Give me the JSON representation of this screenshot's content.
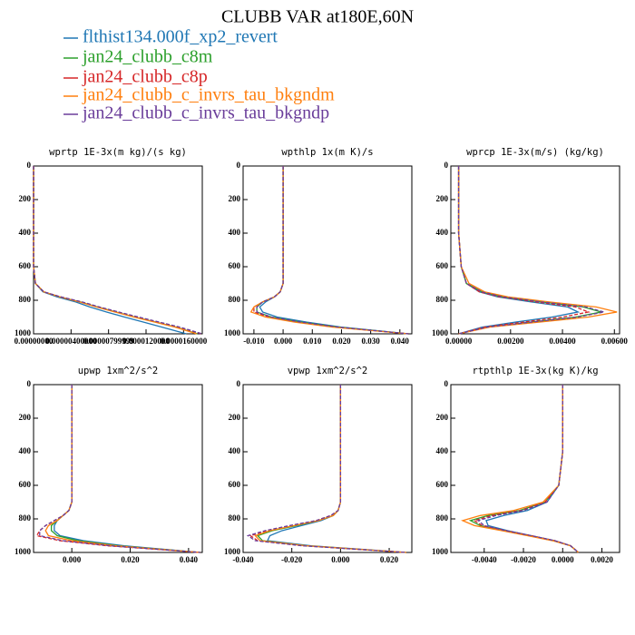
{
  "title": "CLUBB VAR at180E,60N",
  "legend": [
    {
      "name": "flthist134.000f_xp2_revert",
      "color": "#1f77b4",
      "dashed": false
    },
    {
      "name": "jan24_clubb_c8m",
      "color": "#2ca02c",
      "dashed": false
    },
    {
      "name": "jan24_clubb_c8p",
      "color": "#d62728",
      "dashed": true
    },
    {
      "name": "jan24_clubb_c_invrs_tau_bkgndm",
      "color": "#ff7f0e",
      "dashed": false
    },
    {
      "name": "jan24_clubb_c_invrs_tau_bkgndp",
      "color": "#6a3d9a",
      "dashed": true
    }
  ],
  "chart_data": [
    {
      "type": "profile",
      "title": "wprtp  1E-3x(m kg)/(s kg)",
      "y": [
        0,
        200,
        400,
        600,
        700,
        750,
        780,
        810,
        840,
        870,
        900,
        930,
        960,
        1000
      ],
      "ylim": [
        1000,
        0
      ],
      "yticks": [
        0,
        200,
        400,
        600,
        800,
        1000
      ],
      "xlim": [
        0,
        1.8e-05
      ],
      "xticks": [
        {
          "value": 0,
          "label": "0.00000000"
        },
        {
          "value": 4e-06,
          "label": "0.00000400000"
        },
        {
          "value": 8e-06,
          "label": "0.00000799999"
        },
        {
          "value": 1.2e-05,
          "label": "0.0000120000"
        },
        {
          "value": 1.6e-05,
          "label": "0.0000160000"
        }
      ],
      "series": [
        {
          "values": [
            0,
            0,
            0,
            0,
            2e-07,
            1e-06,
            2.5e-06,
            4.5e-06,
            6e-06,
            7.8e-06,
            9.7e-06,
            1.17e-05,
            1.37e-05,
            1.63e-05
          ]
        },
        {
          "values": [
            0,
            0,
            0,
            0,
            2e-07,
            1.1e-06,
            2.8e-06,
            5e-06,
            6.8e-06,
            8.8e-06,
            1.08e-05,
            1.3e-05,
            1.52e-05,
            1.75e-05
          ]
        },
        {
          "values": [
            0,
            0,
            0,
            0,
            2e-07,
            1.1e-06,
            2.9e-06,
            5.1e-06,
            7e-06,
            9e-06,
            1.11e-05,
            1.33e-05,
            1.55e-05,
            1.79e-05
          ]
        },
        {
          "values": [
            0,
            0,
            0,
            0,
            2e-07,
            1.1e-06,
            2.8e-06,
            4.9e-06,
            6.7e-06,
            8.7e-06,
            1.07e-05,
            1.29e-05,
            1.51e-05,
            1.74e-05
          ]
        },
        {
          "values": [
            0,
            0,
            0,
            0,
            2e-07,
            1.1e-06,
            2.9e-06,
            5.2e-06,
            7e-06,
            9.1e-06,
            1.12e-05,
            1.34e-05,
            1.56e-05,
            1.8e-05
          ]
        }
      ]
    },
    {
      "type": "profile",
      "title": "wpthlp  1x(m K)/s",
      "y": [
        0,
        200,
        400,
        600,
        700,
        750,
        780,
        810,
        840,
        870,
        900,
        930,
        960,
        1000
      ],
      "ylim": [
        1000,
        0
      ],
      "yticks": [
        0,
        200,
        400,
        600,
        800,
        1000
      ],
      "xlim": [
        -0.0137,
        0.0441
      ],
      "xticks": [
        {
          "value": -0.01,
          "label": "-0.010"
        },
        {
          "value": 0,
          "label": "0.000"
        },
        {
          "value": 0.01,
          "label": "0.010"
        },
        {
          "value": 0.02,
          "label": "0.020"
        },
        {
          "value": 0.03,
          "label": "0.030"
        },
        {
          "value": 0.04,
          "label": "0.040"
        }
      ],
      "series": [
        {
          "values": [
            0,
            0,
            0,
            0,
            0,
            -0.001,
            -0.003,
            -0.006,
            -0.008,
            -0.007,
            -0.002,
            0.008,
            0.02,
            0.043
          ]
        },
        {
          "values": [
            0,
            0,
            0,
            0,
            0,
            -0.001,
            -0.003,
            -0.007,
            -0.009,
            -0.009,
            -0.004,
            0.006,
            0.019,
            0.043
          ]
        },
        {
          "values": [
            0,
            0,
            0,
            0,
            0,
            -0.001,
            -0.003,
            -0.007,
            -0.01,
            -0.01,
            -0.005,
            0.005,
            0.018,
            0.043
          ]
        },
        {
          "values": [
            0,
            0,
            0,
            0,
            0,
            -0.001,
            -0.003,
            -0.007,
            -0.01,
            -0.011,
            -0.006,
            0.004,
            0.017,
            0.043
          ]
        },
        {
          "values": [
            0,
            0,
            0,
            0,
            0,
            -0.001,
            -0.003,
            -0.007,
            -0.009,
            -0.009,
            -0.004,
            0.006,
            0.019,
            0.043
          ]
        }
      ]
    },
    {
      "type": "profile",
      "title": "wprcp  1E-3x(m/s) (kg/kg)",
      "y": [
        0,
        200,
        400,
        600,
        700,
        750,
        780,
        810,
        840,
        870,
        900,
        930,
        960,
        1000
      ],
      "ylim": [
        1000,
        0
      ],
      "yticks": [
        0,
        200,
        400,
        600,
        800,
        1000
      ],
      "xlim": [
        -0.0003,
        0.0062
      ],
      "xticks": [
        {
          "value": 0,
          "label": "0.00000"
        },
        {
          "value": 0.002,
          "label": "0.00200"
        },
        {
          "value": 0.004,
          "label": "0.00400"
        },
        {
          "value": 0.006,
          "label": "0.00600"
        }
      ],
      "series": [
        {
          "values": [
            0,
            0,
            0,
            0.0001,
            0.0003,
            0.0008,
            0.0015,
            0.0028,
            0.0042,
            0.0046,
            0.0036,
            0.0022,
            0.0009,
            0
          ]
        },
        {
          "values": [
            0,
            0,
            0,
            0.0001,
            0.0003,
            0.0009,
            0.0017,
            0.0032,
            0.0048,
            0.0055,
            0.0045,
            0.0028,
            0.0011,
            0
          ]
        },
        {
          "values": [
            0,
            0,
            0,
            0.0001,
            0.0003,
            0.0008,
            0.0016,
            0.003,
            0.0045,
            0.005,
            0.004,
            0.0025,
            0.001,
            0
          ]
        },
        {
          "values": [
            0,
            0,
            0,
            0.0001,
            0.0004,
            0.001,
            0.0019,
            0.0035,
            0.0053,
            0.0061,
            0.005,
            0.0031,
            0.0012,
            0
          ]
        },
        {
          "values": [
            0,
            0,
            0,
            0.0001,
            0.0003,
            0.0009,
            0.0017,
            0.0032,
            0.0049,
            0.0056,
            0.0046,
            0.0028,
            0.0011,
            0
          ]
        }
      ]
    },
    {
      "type": "profile",
      "title": "upwp  1xm^2/s^2",
      "y": [
        0,
        200,
        400,
        600,
        700,
        750,
        780,
        810,
        840,
        870,
        900,
        930,
        960,
        1000
      ],
      "ylim": [
        1000,
        0
      ],
      "yticks": [
        0,
        200,
        400,
        600,
        800,
        1000
      ],
      "xlim": [
        -0.0131,
        0.0447
      ],
      "xticks": [
        {
          "value": 0,
          "label": "0.000"
        },
        {
          "value": 0.02,
          "label": "0.020"
        },
        {
          "value": 0.04,
          "label": "0.040"
        }
      ],
      "series": [
        {
          "values": [
            0,
            0,
            0,
            0,
            0,
            -0.001,
            -0.003,
            -0.005,
            -0.006,
            -0.006,
            -0.004,
            0.004,
            0.018,
            0.044
          ]
        },
        {
          "values": [
            0,
            0,
            0,
            0,
            0,
            -0.001,
            -0.003,
            -0.005,
            -0.007,
            -0.007,
            -0.005,
            0.002,
            0.016,
            0.044
          ]
        },
        {
          "values": [
            0,
            0,
            0,
            0,
            0,
            -0.001,
            -0.003,
            -0.006,
            -0.009,
            -0.011,
            -0.012,
            -0.004,
            0.012,
            0.044
          ]
        },
        {
          "values": [
            0,
            0,
            0,
            0,
            0,
            -0.001,
            -0.003,
            -0.005,
            -0.008,
            -0.009,
            -0.008,
            0,
            0.015,
            0.044
          ]
        },
        {
          "values": [
            0,
            0,
            0,
            0,
            0,
            -0.001,
            -0.003,
            -0.006,
            -0.009,
            -0.011,
            -0.011,
            -0.003,
            0.013,
            0.044
          ]
        }
      ]
    },
    {
      "type": "profile",
      "title": "vpwp  1xm^2/s^2",
      "y": [
        0,
        200,
        400,
        600,
        700,
        750,
        780,
        810,
        840,
        870,
        900,
        930,
        960,
        1000
      ],
      "ylim": [
        1000,
        0
      ],
      "yticks": [
        0,
        200,
        400,
        600,
        800,
        1000
      ],
      "xlim": [
        -0.04,
        0.0293
      ],
      "xticks": [
        {
          "value": -0.04,
          "label": "-0.040"
        },
        {
          "value": -0.02,
          "label": "-0.020"
        },
        {
          "value": 0,
          "label": "0.000"
        },
        {
          "value": 0.02,
          "label": "0.020"
        }
      ],
      "series": [
        {
          "values": [
            0,
            0,
            0,
            0,
            0,
            -0.001,
            -0.003,
            -0.008,
            -0.016,
            -0.024,
            -0.029,
            -0.03,
            -0.012,
            0.027
          ]
        },
        {
          "values": [
            0,
            0,
            0,
            0,
            0,
            -0.001,
            -0.003,
            -0.009,
            -0.018,
            -0.028,
            -0.034,
            -0.032,
            -0.014,
            0.027
          ]
        },
        {
          "values": [
            0,
            0,
            0,
            0,
            0,
            -0.001,
            -0.004,
            -0.01,
            -0.02,
            -0.03,
            -0.037,
            -0.034,
            -0.015,
            0.027
          ]
        },
        {
          "values": [
            0,
            0,
            0,
            0,
            0,
            -0.001,
            -0.003,
            -0.009,
            -0.019,
            -0.029,
            -0.035,
            -0.033,
            -0.014,
            0.027
          ]
        },
        {
          "values": [
            0,
            0,
            0,
            0,
            0,
            -0.001,
            -0.004,
            -0.01,
            -0.021,
            -0.031,
            -0.038,
            -0.035,
            -0.016,
            0.027
          ]
        }
      ]
    },
    {
      "type": "profile",
      "title": "rtpthlp  1E-3x(kg K)/kg",
      "y": [
        0,
        200,
        400,
        600,
        700,
        750,
        780,
        810,
        840,
        870,
        900,
        930,
        960,
        1000
      ],
      "ylim": [
        1000,
        0
      ],
      "yticks": [
        0,
        200,
        400,
        600,
        800,
        1000
      ],
      "xlim": [
        -0.0057,
        0.0029
      ],
      "xticks": [
        {
          "value": -0.004,
          "label": "-0.0040"
        },
        {
          "value": -0.002,
          "label": "-0.0020"
        },
        {
          "value": 0,
          "label": "0.0000"
        },
        {
          "value": 0.002,
          "label": "0.0020"
        }
      ],
      "series": [
        {
          "values": [
            0,
            0,
            0,
            -0.0002,
            -0.0008,
            -0.0018,
            -0.003,
            -0.0039,
            -0.0038,
            -0.0028,
            -0.0016,
            -0.0004,
            0.0004,
            0.0008
          ]
        },
        {
          "values": [
            0,
            0,
            0,
            -0.0002,
            -0.0009,
            -0.0022,
            -0.0038,
            -0.0047,
            -0.0042,
            -0.003,
            -0.0017,
            -0.0005,
            0.0004,
            0.0008
          ]
        },
        {
          "values": [
            0,
            0,
            0,
            -0.0002,
            -0.0009,
            -0.0021,
            -0.0036,
            -0.0045,
            -0.0041,
            -0.0029,
            -0.0016,
            -0.0004,
            0.0004,
            0.0008
          ]
        },
        {
          "values": [
            0,
            0,
            0,
            -0.0002,
            -0.001,
            -0.0025,
            -0.0042,
            -0.0051,
            -0.0045,
            -0.0031,
            -0.0018,
            -0.0005,
            0.0004,
            0.0008
          ]
        },
        {
          "values": [
            0,
            0,
            0,
            -0.0002,
            -0.0008,
            -0.002,
            -0.0034,
            -0.0043,
            -0.004,
            -0.0029,
            -0.0016,
            -0.0004,
            0.0004,
            0.0008
          ]
        }
      ]
    }
  ]
}
